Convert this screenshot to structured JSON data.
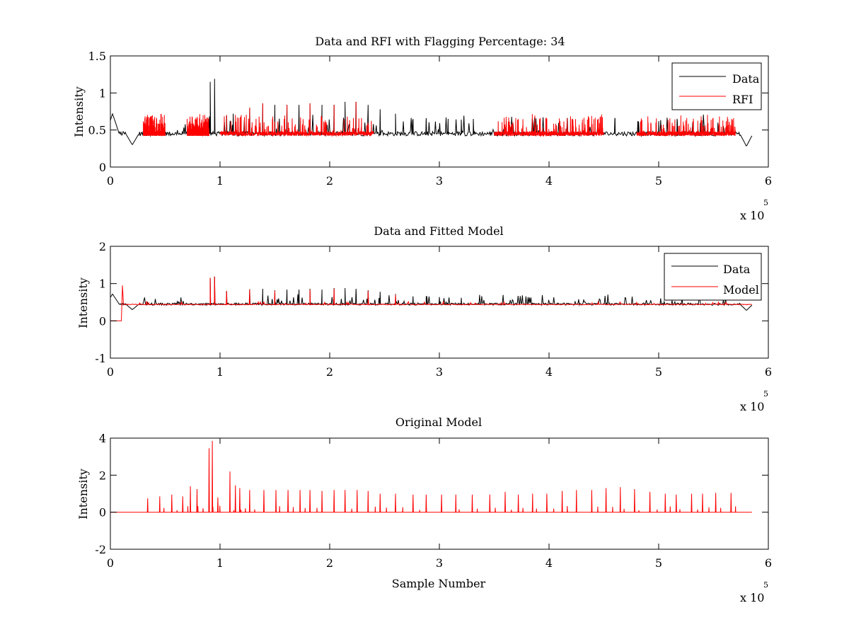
{
  "chart_data": [
    {
      "type": "line",
      "title": "Data and RFI with Flagging Percentage: 34",
      "xlabel": "",
      "ylabel": "Intensity",
      "xlim": [
        0,
        6
      ],
      "ylim": [
        0,
        1.5
      ],
      "x_multiplier_label": "x 10",
      "x_multiplier_exp": "5",
      "xticks": [
        "0",
        "1",
        "2",
        "3",
        "4",
        "5",
        "6"
      ],
      "yticks": [
        "0",
        "0.5",
        "1",
        "1.5"
      ],
      "grid": false,
      "legend_position": "top-right",
      "legend": [
        {
          "name": "Data",
          "color": "#000000"
        },
        {
          "name": "RFI",
          "color": "#ff0000"
        }
      ],
      "series": [
        {
          "name": "Data",
          "color": "#000000",
          "baseline": 0.45,
          "peaks": [
            [
              0.91,
              1.15
            ],
            [
              0.95,
              1.19
            ],
            [
              1.06,
              0.7
            ],
            [
              1.12,
              0.72
            ],
            [
              1.27,
              0.8
            ],
            [
              1.39,
              0.86
            ],
            [
              1.5,
              0.84
            ],
            [
              1.61,
              0.84
            ],
            [
              1.72,
              0.84
            ],
            [
              1.82,
              0.86
            ],
            [
              1.93,
              0.84
            ],
            [
              2.04,
              0.84
            ],
            [
              2.14,
              0.88
            ],
            [
              2.24,
              0.88
            ],
            [
              2.35,
              0.84
            ],
            [
              2.46,
              0.78
            ],
            [
              2.6,
              0.72
            ],
            [
              2.76,
              0.65
            ],
            [
              2.88,
              0.66
            ],
            [
              3.08,
              0.65
            ],
            [
              3.2,
              0.64
            ],
            [
              3.31,
              0.65
            ],
            [
              4.6,
              0.65
            ],
            [
              4.81,
              0.62
            ],
            [
              5.0,
              0.62
            ],
            [
              5.17,
              0.62
            ],
            [
              5.38,
              0.6
            ],
            [
              5.54,
              0.6
            ]
          ],
          "dips": [
            [
              0.02,
              0.72
            ],
            [
              0.2,
              0.3
            ],
            [
              5.8,
              0.28
            ]
          ]
        },
        {
          "name": "RFI",
          "color": "#ff0000",
          "baseline": 0.45,
          "ranges": [
            [
              0.3,
              0.5
            ],
            [
              0.7,
              0.9
            ],
            [
              1.0,
              2.4
            ],
            [
              3.5,
              4.5
            ],
            [
              4.8,
              5.7
            ]
          ],
          "peaks": [
            [
              1.06,
              0.7
            ],
            [
              1.27,
              0.8
            ],
            [
              1.39,
              0.86
            ],
            [
              1.61,
              0.84
            ],
            [
              1.82,
              0.86
            ],
            [
              2.04,
              0.84
            ],
            [
              2.24,
              0.88
            ],
            [
              2.46,
              0.78
            ],
            [
              3.85,
              0.62
            ],
            [
              4.1,
              0.62
            ],
            [
              4.35,
              0.64
            ]
          ]
        }
      ]
    },
    {
      "type": "line",
      "title": "Data and Fitted Model",
      "xlabel": "",
      "ylabel": "Intensity",
      "xlim": [
        0,
        6
      ],
      "ylim": [
        -1,
        2
      ],
      "x_multiplier_label": "x 10",
      "x_multiplier_exp": "5",
      "xticks": [
        "0",
        "1",
        "2",
        "3",
        "4",
        "5",
        "6"
      ],
      "yticks": [
        "-1",
        "0",
        "1",
        "2"
      ],
      "grid": false,
      "legend_position": "top-right",
      "legend": [
        {
          "name": "Data",
          "color": "#000000"
        },
        {
          "name": "Model",
          "color": "#ff0000"
        }
      ],
      "series": [
        {
          "name": "Data",
          "color": "#000000",
          "baseline": 0.45,
          "peaks": [
            [
              0.91,
              1.15
            ],
            [
              0.95,
              1.19
            ],
            [
              1.06,
              0.8
            ],
            [
              1.27,
              0.85
            ],
            [
              1.39,
              0.86
            ],
            [
              1.5,
              0.82
            ],
            [
              1.61,
              0.84
            ],
            [
              1.72,
              0.84
            ],
            [
              1.82,
              0.86
            ],
            [
              1.93,
              0.84
            ],
            [
              2.04,
              0.88
            ],
            [
              2.14,
              0.88
            ],
            [
              2.24,
              0.86
            ],
            [
              2.35,
              0.82
            ],
            [
              2.46,
              0.78
            ],
            [
              2.6,
              0.72
            ],
            [
              2.76,
              0.66
            ],
            [
              2.88,
              0.66
            ],
            [
              3.0,
              0.64
            ],
            [
              3.2,
              0.62
            ]
          ],
          "dips": [
            [
              0.02,
              0.72
            ],
            [
              0.2,
              0.3
            ],
            [
              5.8,
              0.28
            ]
          ]
        },
        {
          "name": "Model",
          "color": "#ff0000",
          "baseline": 0.44,
          "start_segment": [
            [
              0.0,
              0.0
            ],
            [
              0.1,
              0.0
            ],
            [
              0.11,
              0.95
            ]
          ],
          "peaks": [
            [
              0.91,
              1.15
            ],
            [
              0.95,
              1.19
            ],
            [
              1.06,
              0.8
            ],
            [
              1.27,
              0.84
            ],
            [
              1.5,
              0.8
            ],
            [
              1.82,
              0.84
            ],
            [
              2.04,
              0.86
            ],
            [
              2.35,
              0.8
            ],
            [
              2.6,
              0.7
            ]
          ]
        }
      ]
    },
    {
      "type": "line",
      "title": "Original Model",
      "xlabel": "Sample Number",
      "ylabel": "Intensity",
      "xlim": [
        0,
        6
      ],
      "ylim": [
        -2,
        4
      ],
      "x_multiplier_label": "x 10",
      "x_multiplier_exp": "5",
      "xticks": [
        "0",
        "1",
        "2",
        "3",
        "4",
        "5",
        "6"
      ],
      "yticks": [
        "-2",
        "0",
        "2",
        "4"
      ],
      "grid": false,
      "series": [
        {
          "name": "",
          "color": "#ff0000",
          "baseline": 0.0,
          "peaks": [
            [
              0.34,
              0.75
            ],
            [
              0.45,
              0.85
            ],
            [
              0.56,
              0.95
            ],
            [
              0.66,
              0.85
            ],
            [
              0.73,
              1.4
            ],
            [
              0.79,
              1.25
            ],
            [
              0.9,
              3.45
            ],
            [
              0.93,
              3.85
            ],
            [
              0.98,
              0.8
            ],
            [
              1.09,
              2.2
            ],
            [
              1.14,
              1.45
            ],
            [
              1.18,
              1.3
            ],
            [
              1.27,
              1.2
            ],
            [
              1.4,
              1.2
            ],
            [
              1.51,
              1.2
            ],
            [
              1.62,
              1.2
            ],
            [
              1.73,
              1.2
            ],
            [
              1.82,
              1.2
            ],
            [
              1.93,
              1.15
            ],
            [
              2.04,
              1.2
            ],
            [
              2.14,
              1.2
            ],
            [
              2.25,
              1.2
            ],
            [
              2.35,
              1.15
            ],
            [
              2.46,
              1.0
            ],
            [
              2.6,
              1.0
            ],
            [
              2.76,
              0.95
            ],
            [
              2.88,
              0.95
            ],
            [
              3.02,
              0.95
            ],
            [
              3.15,
              0.95
            ],
            [
              3.3,
              0.95
            ],
            [
              3.46,
              0.95
            ],
            [
              3.6,
              1.1
            ],
            [
              3.72,
              0.95
            ],
            [
              3.85,
              1.0
            ],
            [
              3.98,
              1.0
            ],
            [
              4.12,
              1.15
            ],
            [
              4.25,
              1.2
            ],
            [
              4.39,
              1.2
            ],
            [
              4.52,
              1.3
            ],
            [
              4.65,
              1.35
            ],
            [
              4.78,
              1.25
            ],
            [
              4.92,
              1.1
            ],
            [
              5.06,
              1.0
            ],
            [
              5.16,
              0.95
            ],
            [
              5.3,
              1.0
            ],
            [
              5.4,
              1.0
            ],
            [
              5.52,
              1.05
            ],
            [
              5.66,
              1.05
            ]
          ]
        }
      ]
    }
  ]
}
